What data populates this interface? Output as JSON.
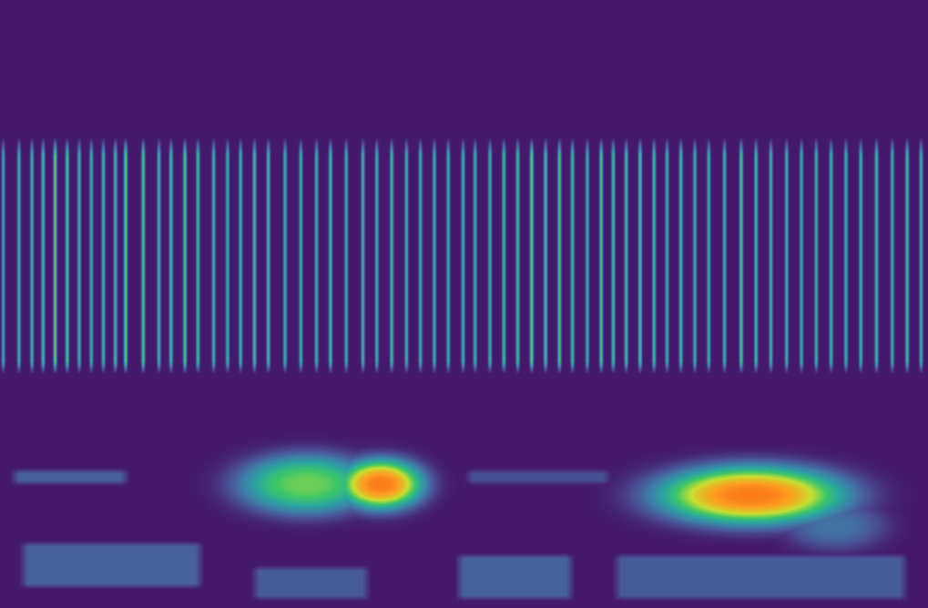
{
  "chart_data": {
    "type": "spectrogram",
    "xlim": [
      0,
      100
    ],
    "ylim": [
      0,
      100
    ],
    "tick_labels": false,
    "grid": false,
    "color_range": [
      0,
      1
    ],
    "pulse_band": [
      38.5,
      77.5
    ],
    "pulses": {
      "x": [
        0.3,
        2.0,
        3.4,
        4.6,
        5.9,
        7.2,
        8.5,
        9.8,
        11.1,
        12.4,
        13.5,
        15.4,
        17.1,
        18.4,
        19.9,
        21.3,
        23.0,
        24.5,
        25.9,
        27.4,
        28.9,
        30.7,
        32.4,
        34.1,
        35.6,
        37.3,
        39.1,
        40.6,
        42.2,
        43.8,
        45.3,
        46.8,
        48.3,
        49.9,
        51.2,
        52.8,
        54.3,
        55.8,
        57.3,
        58.8,
        60.3,
        61.7,
        63.3,
        64.8,
        66.1,
        67.5,
        69.0,
        70.5,
        71.9,
        73.4,
        74.9,
        76.4,
        78.1,
        79.9,
        81.5,
        83.1,
        84.8,
        86.4,
        88.0,
        89.6,
        91.2,
        92.8,
        94.5,
        96.2,
        97.8,
        99.3
      ],
      "intensity": [
        0.4,
        0.45,
        0.45,
        0.5,
        0.6,
        0.55,
        0.45,
        0.45,
        0.45,
        0.5,
        0.6,
        0.55,
        0.45,
        0.5,
        0.55,
        0.5,
        0.45,
        0.45,
        0.45,
        0.5,
        0.5,
        0.45,
        0.45,
        0.45,
        0.5,
        0.45,
        0.45,
        0.45,
        0.5,
        0.45,
        0.45,
        0.45,
        0.45,
        0.45,
        0.45,
        0.45,
        0.5,
        0.5,
        0.6,
        0.5,
        0.55,
        0.5,
        0.45,
        0.55,
        0.5,
        0.5,
        0.55,
        0.5,
        0.45,
        0.5,
        0.45,
        0.45,
        0.45,
        0.55,
        0.5,
        0.45,
        0.45,
        0.45,
        0.45,
        0.45,
        0.45,
        0.45,
        0.5,
        0.45,
        0.5,
        0.45
      ]
    },
    "blobs": [
      {
        "x": 33,
        "y": 20.3,
        "width": 7.5,
        "height": 5.0,
        "intensity": 0.62
      },
      {
        "x": 41,
        "y": 20.3,
        "width": 4.8,
        "height": 4.3,
        "intensity": 0.9
      },
      {
        "x": 81,
        "y": 18.5,
        "width": 10.5,
        "height": 5.0,
        "intensity": 0.9
      },
      {
        "x": 90,
        "y": 13.5,
        "width": 5.5,
        "height": 4.0,
        "intensity": 0.25
      }
    ],
    "patches": [
      {
        "x": [
          2,
          22
        ],
        "y": [
          3,
          11
        ],
        "intensity": 0.2
      },
      {
        "x": [
          27,
          40
        ],
        "y": [
          1,
          7
        ],
        "intensity": 0.18
      },
      {
        "x": [
          49,
          62
        ],
        "y": [
          1,
          9
        ],
        "intensity": 0.2
      },
      {
        "x": [
          66,
          98
        ],
        "y": [
          1,
          9
        ],
        "intensity": 0.18
      },
      {
        "x": [
          1,
          14
        ],
        "y": [
          20,
          23
        ],
        "intensity": 0.2
      },
      {
        "x": [
          50,
          66
        ],
        "y": [
          20,
          23
        ],
        "intensity": 0.15
      }
    ]
  }
}
